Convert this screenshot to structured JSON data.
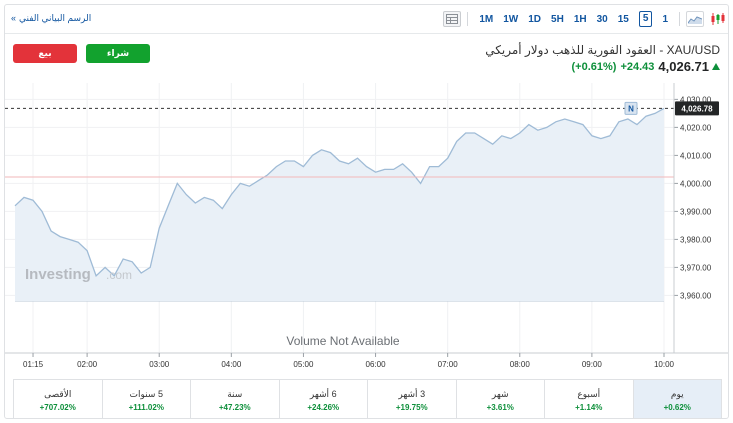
{
  "toolbar": {
    "technical_chart_link": "الرسم البياني الفني",
    "timeframes": [
      "1M",
      "1W",
      "1D",
      "5H",
      "1H",
      "30",
      "15",
      "5",
      "1"
    ],
    "active_timeframe": "5"
  },
  "header": {
    "sell_label": "بيع",
    "buy_label": "شراء",
    "title": "XAU/USD - العقود الفورية للذهب دولار أمريكي",
    "price": "4,026.71",
    "change": "+24.43",
    "change_pct": "(+0.61%)"
  },
  "chart": {
    "volume_text": "Volume Not Available",
    "watermark_main": "Investing",
    "watermark_suffix": ".com",
    "last_price_label": "4,026.78",
    "marker_label": "N",
    "colors": {
      "line": "#9fbbd6",
      "area": "#e9f0f7",
      "prev_close": "#f2b7b9",
      "up": "#0d8f3a",
      "down": "#e3333a"
    }
  },
  "chart_data": {
    "type": "area",
    "x": [
      "01:00",
      "01:07",
      "01:15",
      "01:22",
      "01:30",
      "01:37",
      "01:45",
      "01:52",
      "02:00",
      "02:07",
      "02:15",
      "02:22",
      "02:30",
      "02:37",
      "02:45",
      "02:52",
      "03:00",
      "03:07",
      "03:15",
      "03:22",
      "03:30",
      "03:37",
      "03:45",
      "03:52",
      "04:00",
      "04:07",
      "04:15",
      "04:22",
      "04:30",
      "04:37",
      "04:45",
      "04:52",
      "05:00",
      "05:07",
      "05:15",
      "05:22",
      "05:30",
      "05:37",
      "05:45",
      "05:52",
      "06:00",
      "06:07",
      "06:15",
      "06:22",
      "06:30",
      "06:37",
      "06:45",
      "06:52",
      "07:00",
      "07:07",
      "07:15",
      "07:22",
      "07:30",
      "07:37",
      "07:45",
      "07:52",
      "08:00",
      "08:07",
      "08:15",
      "08:22",
      "08:30",
      "08:37",
      "08:45",
      "08:52",
      "09:00",
      "09:07",
      "09:15",
      "09:22",
      "09:30",
      "09:37",
      "09:45",
      "09:52",
      "10:00"
    ],
    "values": [
      3992,
      3995,
      3994,
      3990,
      3983,
      3981,
      3980,
      3979,
      3976,
      3967,
      3970,
      3967,
      3973,
      3972,
      3968,
      3970,
      3984,
      3992,
      4000,
      3996,
      3993,
      3995,
      3994,
      3991,
      3996,
      4000,
      3999,
      4001,
      4003,
      4006,
      4008,
      4008,
      4006,
      4010,
      4012,
      4011,
      4008,
      4007,
      4009,
      4006,
      4004,
      4005,
      4005,
      4007,
      4004,
      4000,
      4006,
      4006,
      4009,
      4015,
      4018,
      4018,
      4016,
      4014,
      4017,
      4016,
      4018,
      4021,
      4019,
      4020,
      4022,
      4023,
      4022,
      4021,
      4017,
      4016,
      4017,
      4022,
      4023,
      4021,
      4024,
      4025,
      4026.78
    ],
    "xticks": [
      "01:15",
      "02:00",
      "03:00",
      "04:00",
      "05:00",
      "06:00",
      "07:00",
      "08:00",
      "09:00",
      "10:00"
    ],
    "yticks": [
      "4,030.00",
      "4,020.00",
      "4,010.00",
      "4,000.00",
      "3,990.00",
      "3,980.00",
      "3,970.00",
      "3,960.00"
    ],
    "ylim": [
      3958,
      4033
    ],
    "previous_close": 4002.28,
    "last_value": 4026.78
  },
  "periods": [
    {
      "label": "يوم",
      "value": "+0.62%"
    },
    {
      "label": "أسبوع",
      "value": "+1.14%"
    },
    {
      "label": "شهر",
      "value": "+3.61%"
    },
    {
      "label": "3 أشهر",
      "value": "+19.75%"
    },
    {
      "label": "6 أشهر",
      "value": "+24.26%"
    },
    {
      "label": "سنة",
      "value": "+47.23%"
    },
    {
      "label": "5 سنوات",
      "value": "+111.02%"
    },
    {
      "label": "الأقصى",
      "value": "+707.02%"
    }
  ]
}
